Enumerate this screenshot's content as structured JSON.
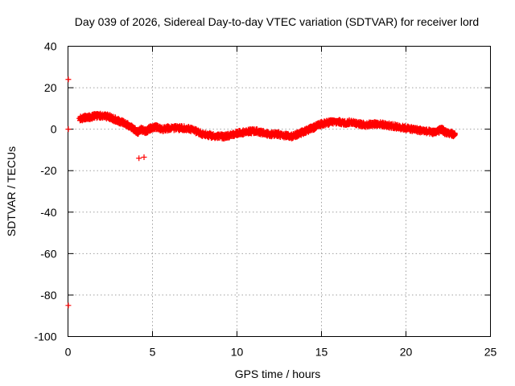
{
  "chart_data": {
    "type": "scatter",
    "title": "Day 039 of 2026, Sidereal Day-to-day VTEC variation (SDTVAR) for receiver lord",
    "xlabel": "GPS time / hours",
    "ylabel": "SDTVAR / TECUs",
    "xlim": [
      0,
      25
    ],
    "ylim": [
      -100,
      40
    ],
    "xticks": [
      0,
      5,
      10,
      15,
      20,
      25
    ],
    "yticks": [
      40,
      20,
      0,
      -20,
      -40,
      -60,
      -80,
      -100
    ],
    "xtick_labels": [
      "0",
      "5",
      "10",
      "15",
      "20",
      "25"
    ],
    "ytick_labels": [
      "40",
      "20",
      "0",
      "-20",
      "-40",
      "-60",
      "-80",
      "-100"
    ],
    "grid": true,
    "marker": "plus",
    "series_color": "#ff0000",
    "outliers": [
      {
        "x": 0.02,
        "y": 24
      },
      {
        "x": 0.02,
        "y": 0
      },
      {
        "x": 0.02,
        "y": -85
      },
      {
        "x": 4.2,
        "y": -14
      },
      {
        "x": 4.5,
        "y": -13.5
      }
    ],
    "trace": [
      {
        "x": 0.7,
        "y": 5
      },
      {
        "x": 1.0,
        "y": 5.5
      },
      {
        "x": 1.3,
        "y": 5.8
      },
      {
        "x": 1.6,
        "y": 6.5
      },
      {
        "x": 2.0,
        "y": 6.5
      },
      {
        "x": 2.4,
        "y": 6
      },
      {
        "x": 2.7,
        "y": 5
      },
      {
        "x": 3.0,
        "y": 4
      },
      {
        "x": 3.3,
        "y": 3
      },
      {
        "x": 3.6,
        "y": 1.5
      },
      {
        "x": 3.9,
        "y": 0
      },
      {
        "x": 4.1,
        "y": -1.5
      },
      {
        "x": 4.3,
        "y": 0
      },
      {
        "x": 4.6,
        "y": -1
      },
      {
        "x": 4.9,
        "y": 0.5
      },
      {
        "x": 5.2,
        "y": 1
      },
      {
        "x": 5.6,
        "y": 0
      },
      {
        "x": 6.0,
        "y": 0.5
      },
      {
        "x": 6.5,
        "y": 0.5
      },
      {
        "x": 7.0,
        "y": 0.5
      },
      {
        "x": 7.6,
        "y": -1
      },
      {
        "x": 8.0,
        "y": -2.5
      },
      {
        "x": 8.4,
        "y": -3
      },
      {
        "x": 8.8,
        "y": -3.5
      },
      {
        "x": 9.2,
        "y": -3.5
      },
      {
        "x": 9.6,
        "y": -3
      },
      {
        "x": 10.0,
        "y": -2
      },
      {
        "x": 10.4,
        "y": -1.5
      },
      {
        "x": 10.8,
        "y": -1
      },
      {
        "x": 11.2,
        "y": -1
      },
      {
        "x": 11.6,
        "y": -2
      },
      {
        "x": 12.0,
        "y": -2.5
      },
      {
        "x": 12.4,
        "y": -2.5
      },
      {
        "x": 12.8,
        "y": -3
      },
      {
        "x": 13.2,
        "y": -3.5
      },
      {
        "x": 13.6,
        "y": -2.5
      },
      {
        "x": 14.0,
        "y": -1
      },
      {
        "x": 14.3,
        "y": 0
      },
      {
        "x": 14.6,
        "y": 1
      },
      {
        "x": 15.0,
        "y": 2.5
      },
      {
        "x": 15.3,
        "y": 3
      },
      {
        "x": 15.6,
        "y": 3.5
      },
      {
        "x": 16.0,
        "y": 3.5
      },
      {
        "x": 16.4,
        "y": 3
      },
      {
        "x": 16.8,
        "y": 3.5
      },
      {
        "x": 17.2,
        "y": 2.5
      },
      {
        "x": 17.6,
        "y": 2
      },
      {
        "x": 18.0,
        "y": 2.5
      },
      {
        "x": 18.4,
        "y": 2.5
      },
      {
        "x": 18.8,
        "y": 2
      },
      {
        "x": 19.2,
        "y": 1.5
      },
      {
        "x": 19.6,
        "y": 1
      },
      {
        "x": 20.0,
        "y": 0.5
      },
      {
        "x": 20.4,
        "y": 0
      },
      {
        "x": 20.8,
        "y": -0.5
      },
      {
        "x": 21.2,
        "y": -1
      },
      {
        "x": 21.6,
        "y": -1.5
      },
      {
        "x": 21.9,
        "y": -1
      },
      {
        "x": 22.1,
        "y": 0
      },
      {
        "x": 22.3,
        "y": -1.5
      },
      {
        "x": 22.6,
        "y": -2
      },
      {
        "x": 22.9,
        "y": -2.5
      }
    ]
  }
}
